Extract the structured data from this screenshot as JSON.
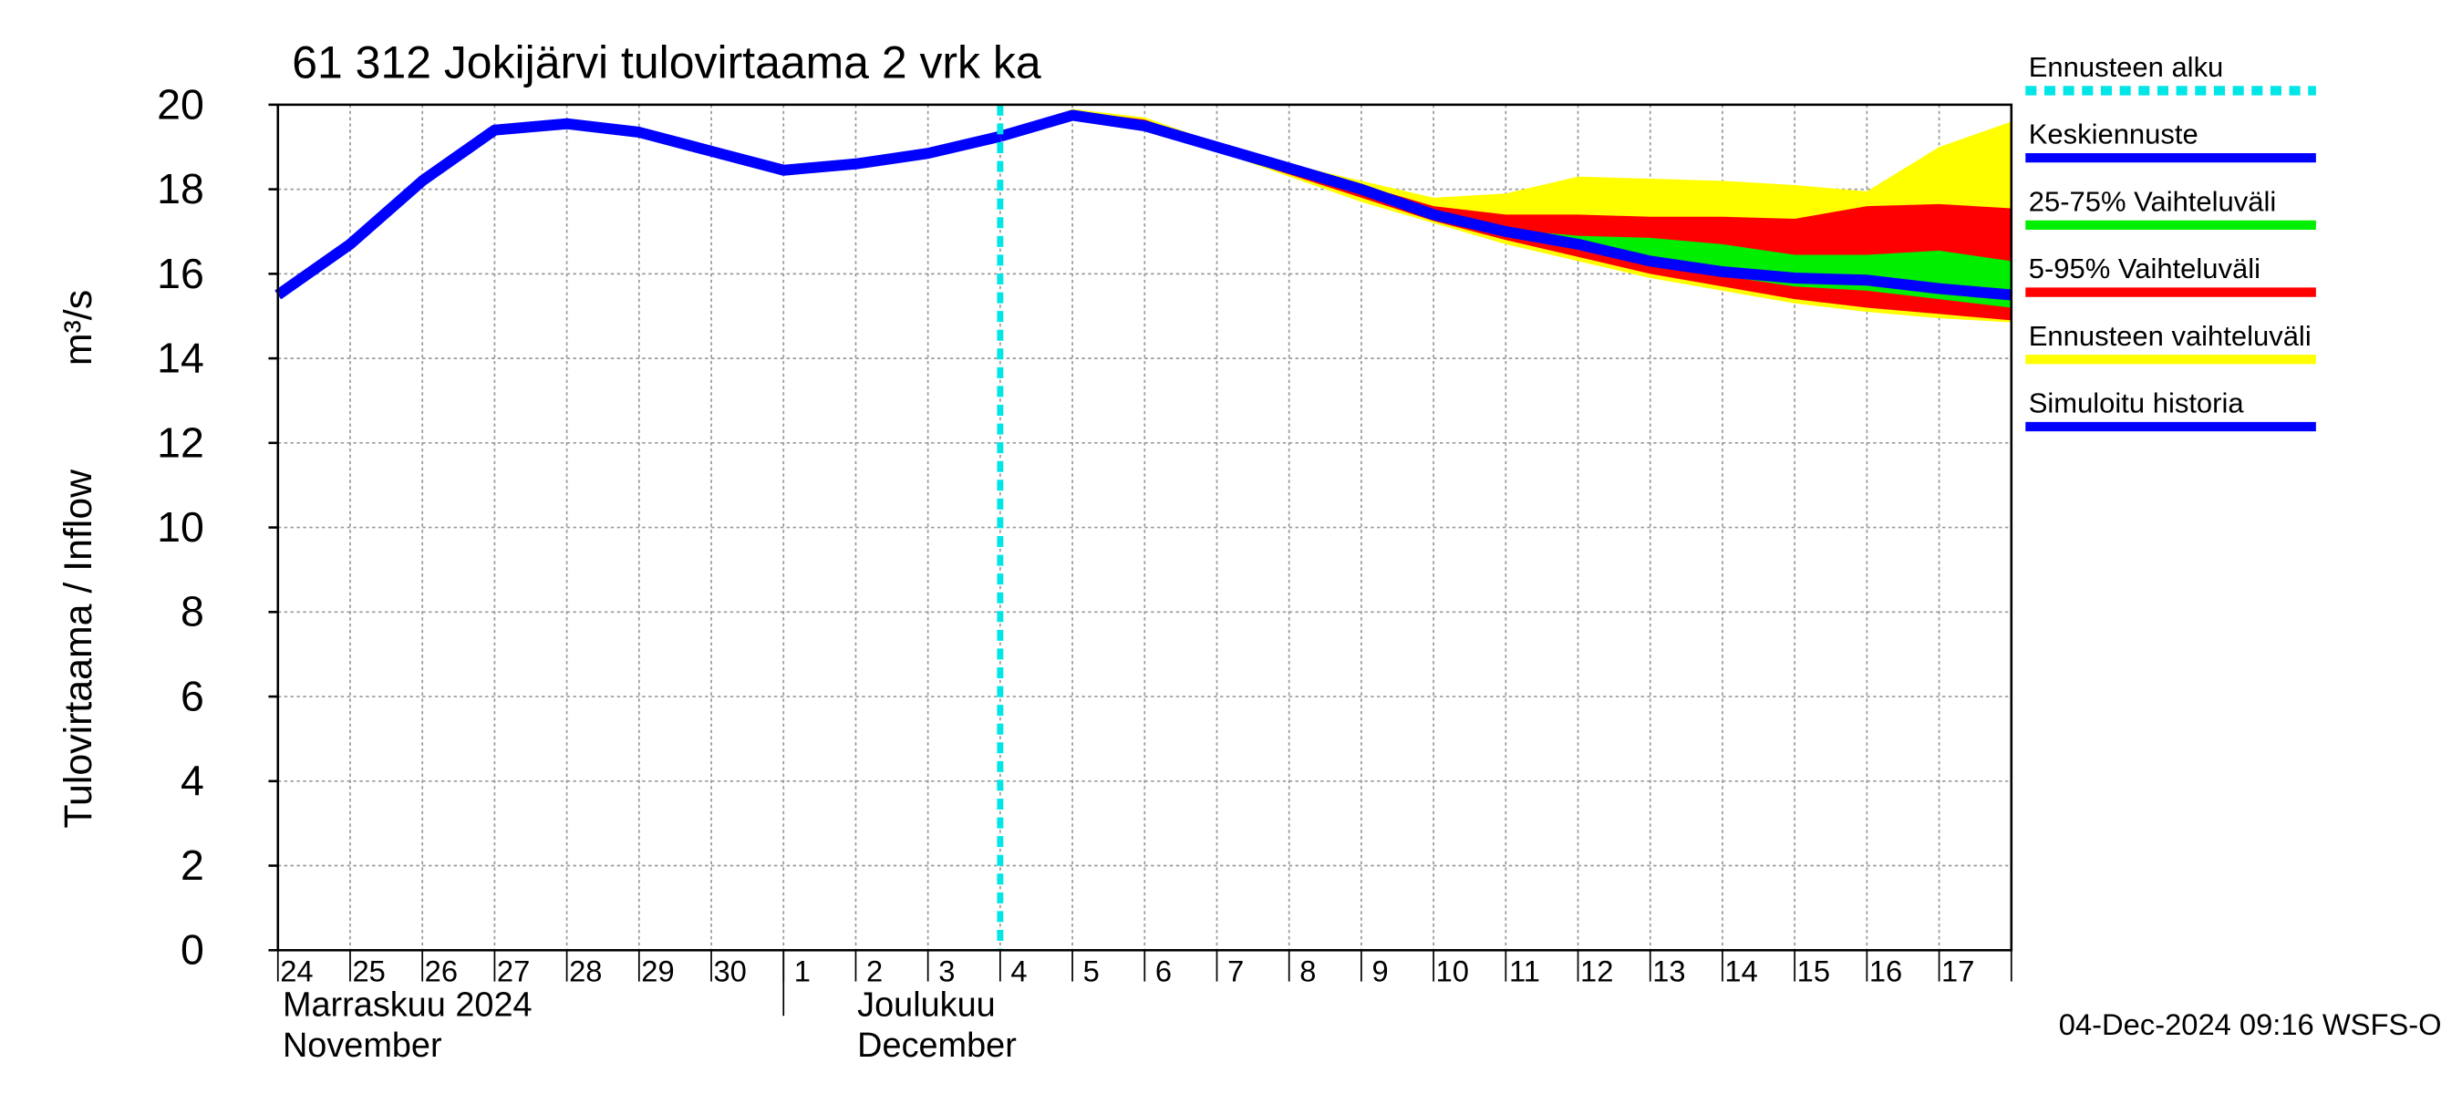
{
  "chart_data": {
    "type": "line",
    "title": "61 312 Jokijärvi tulovirtaama 2 vrk ka",
    "ylabel": "Tulovirtaama / Inflow",
    "yunit": "m³/s",
    "categories": [
      "24",
      "25",
      "26",
      "27",
      "28",
      "29",
      "30",
      "1",
      "2",
      "3",
      "4",
      "5",
      "6",
      "7",
      "8",
      "9",
      "10",
      "11",
      "12",
      "13",
      "14",
      "15",
      "16",
      "17",
      null
    ],
    "months": [
      {
        "name": "Marraskuu 2024",
        "name_en": "November"
      },
      {
        "name": "Joulukuu",
        "name_en": "December"
      }
    ],
    "ylim": [
      0,
      20
    ],
    "yticks": [
      0,
      2,
      4,
      6,
      8,
      10,
      12,
      14,
      16,
      18,
      20
    ],
    "grid": true,
    "markers": [
      {
        "name": "Ennusteen alku",
        "color": "#00e5e5",
        "x": 10
      }
    ],
    "series": [
      {
        "name": "Keskiennuste",
        "color": "#0000ff",
        "kind": "line",
        "values": [
          null,
          null,
          null,
          null,
          null,
          null,
          null,
          null,
          null,
          null,
          19.25,
          19.75,
          19.5,
          19.0,
          18.5,
          18.0,
          17.4,
          17.0,
          16.7,
          16.3,
          16.05,
          15.9,
          15.85,
          15.65,
          15.5
        ]
      },
      {
        "name": "25-75% Vaihteluväli",
        "color": "#00ee00",
        "kind": "band",
        "values": [
          null,
          null,
          null,
          null,
          null,
          null,
          null,
          null,
          null,
          null,
          19.25,
          19.8,
          19.55,
          19.0,
          18.5,
          18.0,
          17.45,
          17.05,
          16.9,
          16.85,
          16.7,
          16.45,
          16.45,
          16.55,
          16.3
        ],
        "lower": [
          null,
          null,
          null,
          null,
          null,
          null,
          null,
          null,
          null,
          null,
          19.25,
          19.75,
          19.5,
          18.95,
          18.45,
          17.9,
          17.35,
          16.95,
          16.6,
          16.25,
          15.95,
          15.7,
          15.6,
          15.4,
          15.2
        ]
      },
      {
        "name": "5-95% Vaihteluväli",
        "color": "#ff0000",
        "kind": "band",
        "values": [
          null,
          null,
          null,
          null,
          null,
          null,
          null,
          null,
          null,
          null,
          19.25,
          19.85,
          19.65,
          19.05,
          18.55,
          18.1,
          17.6,
          17.4,
          17.4,
          17.35,
          17.35,
          17.3,
          17.6,
          17.65,
          17.55
        ],
        "lower": [
          null,
          null,
          null,
          null,
          null,
          null,
          null,
          null,
          null,
          null,
          19.25,
          19.7,
          19.45,
          18.9,
          18.35,
          17.8,
          17.25,
          16.8,
          16.4,
          16.0,
          15.7,
          15.4,
          15.2,
          15.05,
          14.9
        ]
      },
      {
        "name": "Ennusteen vaihteluväli",
        "color": "#ffff00",
        "kind": "band",
        "values": [
          null,
          null,
          null,
          null,
          null,
          null,
          null,
          null,
          null,
          null,
          19.25,
          19.9,
          19.7,
          19.1,
          18.6,
          18.2,
          17.8,
          17.9,
          18.3,
          18.25,
          18.2,
          18.1,
          17.95,
          19.0,
          19.6
        ],
        "lower": [
          null,
          null,
          null,
          null,
          null,
          null,
          null,
          null,
          null,
          null,
          19.25,
          19.7,
          19.4,
          18.9,
          18.3,
          17.7,
          17.2,
          16.7,
          16.3,
          15.9,
          15.6,
          15.3,
          15.1,
          14.95,
          14.85
        ]
      },
      {
        "name": "Simuloitu historia",
        "color": "#0000ff",
        "kind": "line",
        "values": [
          15.5,
          16.7,
          18.2,
          19.4,
          19.55,
          19.35,
          18.9,
          18.45,
          18.6,
          18.85,
          19.25,
          null,
          null,
          null,
          null,
          null,
          null,
          null,
          null,
          null,
          null,
          null,
          null,
          null,
          null
        ]
      }
    ],
    "footer": "04-Dec-2024 09:16 WSFS-O"
  }
}
